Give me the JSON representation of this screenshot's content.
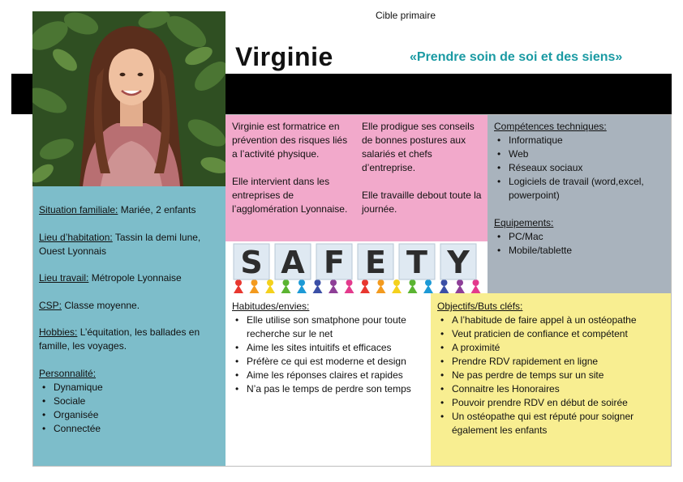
{
  "header": {
    "label": "Cible primaire",
    "name": "Virginie",
    "slogan": "«Prendre soin de soi et des siens»"
  },
  "left": {
    "situation_label": "Situation familiale:",
    "situation_value": " Mariée, 2 enfants",
    "habitation_label": "Lieu d’habitation:",
    "habitation_value": " Tassin la demi lune, Ouest Lyonnais",
    "travail_label": "Lieu travail:",
    "travail_value": " Métropole Lyonnaise",
    "csp_label": "CSP:",
    "csp_value": " Classe moyenne.",
    "hobbies_label": "Hobbies:",
    "hobbies_value": " L’équitation, les ballades en famille, les voyages.",
    "personnalite_label": "Personnalité:",
    "personnalite": [
      "Dynamique",
      "Sociale",
      "Organisée",
      "Connectée"
    ]
  },
  "pink": {
    "col1_p1": "Virginie est formatrice en prévention des risques liés a l’activité physique.",
    "col1_p2": "Elle intervient dans les entreprises de l’agglomération Lyonnaise.",
    "col2_p1": "Elle prodigue ses conseils de bonnes postures aux salariés et chefs d’entreprise.",
    "col2_p2": "Elle travaille debout toute la journée."
  },
  "grey": {
    "competences_label": "Compétences techniques:",
    "competences": [
      "Informatique",
      "Web",
      "Réseaux sociaux",
      "Logiciels de travail (word,excel, powerpoint)"
    ],
    "equipements_label": "Equipements:",
    "equipements": [
      "PC/Mac",
      "Mobile/tablette"
    ]
  },
  "safety": {
    "letters": [
      "S",
      "A",
      "F",
      "E",
      "T",
      "Y"
    ],
    "colors": [
      "#e8372f",
      "#f39a1e",
      "#f4d11d",
      "#5bb431",
      "#1d9ad6",
      "#3b4fa6",
      "#8e3f97",
      "#e33a8c"
    ]
  },
  "habitudes": {
    "label": "Habitudes/envies:",
    "items": [
      "Elle utilise son smatphone pour toute recherche sur le net",
      "Aime les sites intuitifs et efficaces",
      "Préfère ce qui est moderne et design",
      "Aime les réponses claires et rapides",
      "N’a pas le temps de perdre son temps"
    ]
  },
  "objectifs": {
    "label": "Objectifs/Buts cléfs:",
    "items": [
      "A l’habitude de faire appel à un ostéopathe",
      "Veut praticien de confiance et compétent",
      "A proximité",
      "Prendre RDV rapidement en ligne",
      "Ne pas perdre de temps sur un site",
      "Connaitre les Honoraires",
      "Pouvoir prendre RDV en début de soirée",
      "Un ostéopathe qui est réputé pour soigner également les enfants"
    ]
  }
}
